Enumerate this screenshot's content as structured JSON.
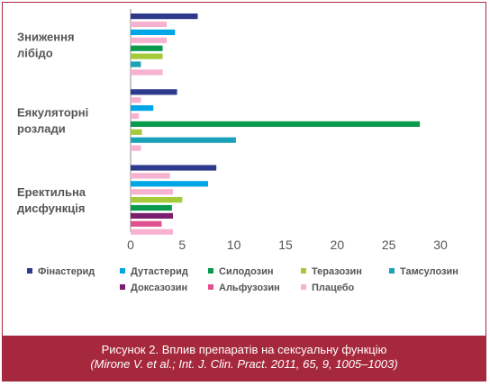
{
  "chart_data": {
    "type": "bar",
    "orientation": "horizontal",
    "xlim": [
      0,
      30
    ],
    "xticks": [
      "0",
      "5",
      "10",
      "15",
      "20",
      "25",
      "30"
    ],
    "groups": [
      {
        "label": [
          "Зниження",
          "лібідо"
        ],
        "bars": [
          {
            "series": "Фінастерид",
            "value": 6.5
          },
          {
            "series": "Плацебо",
            "value": 3.5
          },
          {
            "series": "Дутастерид",
            "value": 4.3
          },
          {
            "series": "Плацебо",
            "value": 3.5
          },
          {
            "series": "Силодозин",
            "value": 3.1
          },
          {
            "series": "Теразозин",
            "value": 3.1
          },
          {
            "series": "Тамсулозин",
            "value": 1.0
          },
          {
            "series": "Плацебо",
            "value": 3.1
          }
        ]
      },
      {
        "label": [
          "Еякуляторні",
          "розлади"
        ],
        "bars": [
          {
            "series": "Фінастерид",
            "value": 4.5
          },
          {
            "series": "Плацебо",
            "value": 1.0
          },
          {
            "series": "Дутастерид",
            "value": 2.2
          },
          {
            "series": "Плацебо",
            "value": 0.8
          },
          {
            "series": "Силодозин",
            "value": 28.0
          },
          {
            "series": "Теразозин",
            "value": 1.1
          },
          {
            "series": "Тамсулозин",
            "value": 10.2
          },
          {
            "series": "Плацебо",
            "value": 1.0
          }
        ]
      },
      {
        "label": [
          "Еректильна",
          "дисфункція"
        ],
        "bars": [
          {
            "series": "Фінастерид",
            "value": 8.3
          },
          {
            "series": "Плацебо",
            "value": 3.8
          },
          {
            "series": "Дутастерид",
            "value": 7.5
          },
          {
            "series": "Плацебо",
            "value": 4.1
          },
          {
            "series": "Теразозин",
            "value": 5.0
          },
          {
            "series": "Силодозин",
            "value": 4.0
          },
          {
            "series": "Доксазозин",
            "value": 4.1
          },
          {
            "series": "Альфузозин",
            "value": 3.0
          },
          {
            "series": "Плацебо",
            "value": 4.1
          }
        ]
      }
    ],
    "legend": [
      {
        "name": "Фінастерид",
        "color": "#2e3a8c"
      },
      {
        "name": "Дутастерид",
        "color": "#00a6e6"
      },
      {
        "name": "Силодозин",
        "color": "#0a9a4e"
      },
      {
        "name": "Теразозин",
        "color": "#a6c93a"
      },
      {
        "name": "Тамсулозин",
        "color": "#1aa3b8"
      },
      {
        "name": "Доксазозин",
        "color": "#7a1e6e"
      },
      {
        "name": "Альфузозин",
        "color": "#e0508c"
      },
      {
        "name": "Плацебо",
        "color": "#f7b2cf"
      }
    ],
    "legend_position": "bottom",
    "grid": false
  },
  "caption": {
    "line1": "Рисунок 2. Вплив препаратів на сексуальну функцію",
    "line2": "(Mirone V. et al.; Int. J. Clin. Pract. 2011, 65, 9, 1005–1003)"
  },
  "colors": {
    "accent": "#a6283c"
  }
}
